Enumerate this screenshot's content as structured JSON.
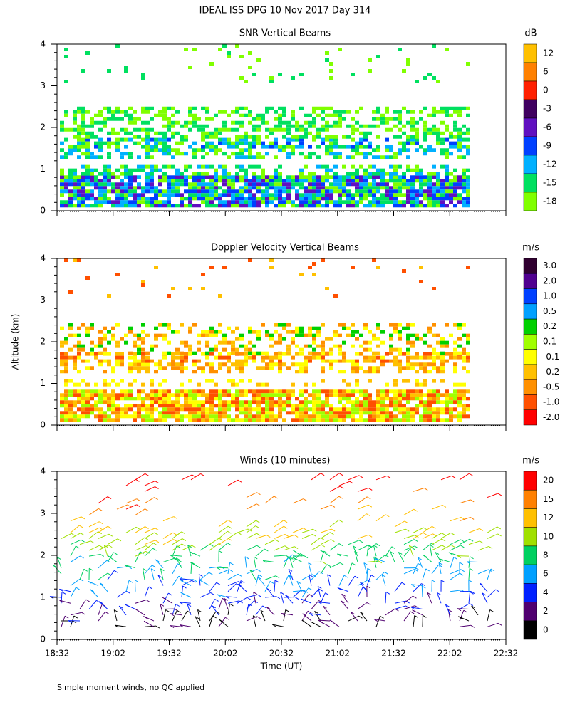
{
  "title": "IDEAL ISS DPG  10 Nov 2017 Day 314",
  "ylabel": "Altitude (km)",
  "xlabel": "Time (UT)",
  "footnote": "Simple moment winds, no QC applied",
  "chart_data": [
    {
      "type": "heatmap",
      "title": "SNR Vertical Beams",
      "ylim": [
        0,
        4
      ],
      "yticks": [
        0,
        1,
        2,
        3,
        4
      ],
      "colorbar": {
        "label": "dB",
        "ticks": [
          12,
          6,
          0,
          -3,
          -6,
          -9,
          -12,
          -15,
          -18
        ],
        "colors": [
          "#ffc000",
          "#ff8000",
          "#ff2000",
          "#400060",
          "#6010c0",
          "#0040ff",
          "#00b0ff",
          "#00e060",
          "#80ff00"
        ]
      }
    },
    {
      "type": "heatmap",
      "title": "Doppler Velocity Vertical Beams",
      "ylim": [
        0,
        4
      ],
      "yticks": [
        0,
        1,
        2,
        3,
        4
      ],
      "colorbar": {
        "label": "m/s",
        "ticks": [
          {
            "value": 3,
            "label": "3.0"
          },
          {
            "value": 2,
            "label": "2.0"
          },
          {
            "value": 1,
            "label": "1.0"
          },
          0.5,
          0.2,
          0.1,
          -0.1,
          -0.2,
          -0.5,
          {
            "value": -1,
            "label": "-1.0"
          },
          {
            "value": -2,
            "label": "-2.0"
          }
        ],
        "colors": [
          "#300030",
          "#500090",
          "#0040ff",
          "#00a0ff",
          "#00d000",
          "#a0ff00",
          "#ffff00",
          "#ffc000",
          "#ff9000",
          "#ff5000",
          "#ff0000"
        ]
      }
    },
    {
      "type": "barbs",
      "title": "Winds (10 minutes)",
      "ylim": [
        0,
        4
      ],
      "yticks": [
        0,
        1,
        2,
        3,
        4
      ],
      "xticks": [
        "18:32",
        "19:02",
        "19:32",
        "20:02",
        "20:32",
        "21:02",
        "21:32",
        "22:02",
        "22:32"
      ],
      "colorbar": {
        "label": "m/s",
        "ticks": [
          20,
          15,
          12,
          10,
          8,
          6,
          4,
          2,
          0
        ],
        "colors": [
          "#ff0000",
          "#ff8000",
          "#ffc000",
          "#a0e000",
          "#00d060",
          "#00a0ff",
          "#0020ff",
          "#500070",
          "#000000"
        ]
      }
    }
  ]
}
